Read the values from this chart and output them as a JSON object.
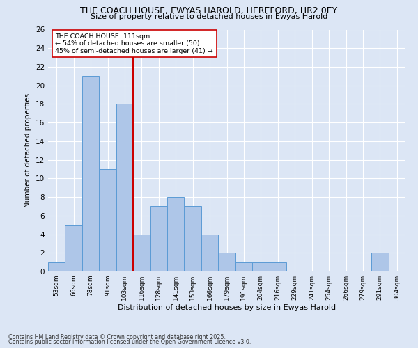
{
  "title": "THE COACH HOUSE, EWYAS HAROLD, HEREFORD, HR2 0EY",
  "subtitle": "Size of property relative to detached houses in Ewyas Harold",
  "xlabel": "Distribution of detached houses by size in Ewyas Harold",
  "ylabel": "Number of detached properties",
  "categories": [
    "53sqm",
    "66sqm",
    "78sqm",
    "91sqm",
    "103sqm",
    "116sqm",
    "128sqm",
    "141sqm",
    "153sqm",
    "166sqm",
    "179sqm",
    "191sqm",
    "204sqm",
    "216sqm",
    "229sqm",
    "241sqm",
    "254sqm",
    "266sqm",
    "279sqm",
    "291sqm",
    "304sqm"
  ],
  "values": [
    1,
    5,
    21,
    11,
    18,
    4,
    7,
    8,
    7,
    4,
    2,
    1,
    1,
    1,
    0,
    0,
    0,
    0,
    0,
    2,
    0
  ],
  "bar_color": "#aec6e8",
  "bar_edge_color": "#5b9bd5",
  "vline_x": 4.5,
  "vline_color": "#cc0000",
  "annotation_text": "THE COACH HOUSE: 111sqm\n← 54% of detached houses are smaller (50)\n45% of semi-detached houses are larger (41) →",
  "annotation_box_color": "#ffffff",
  "annotation_box_edge": "#cc0000",
  "ylim": [
    0,
    26
  ],
  "yticks": [
    0,
    2,
    4,
    6,
    8,
    10,
    12,
    14,
    16,
    18,
    20,
    22,
    24,
    26
  ],
  "background_color": "#dce6f5",
  "grid_color": "#ffffff",
  "footer_line1": "Contains HM Land Registry data © Crown copyright and database right 2025.",
  "footer_line2": "Contains public sector information licensed under the Open Government Licence v3.0."
}
